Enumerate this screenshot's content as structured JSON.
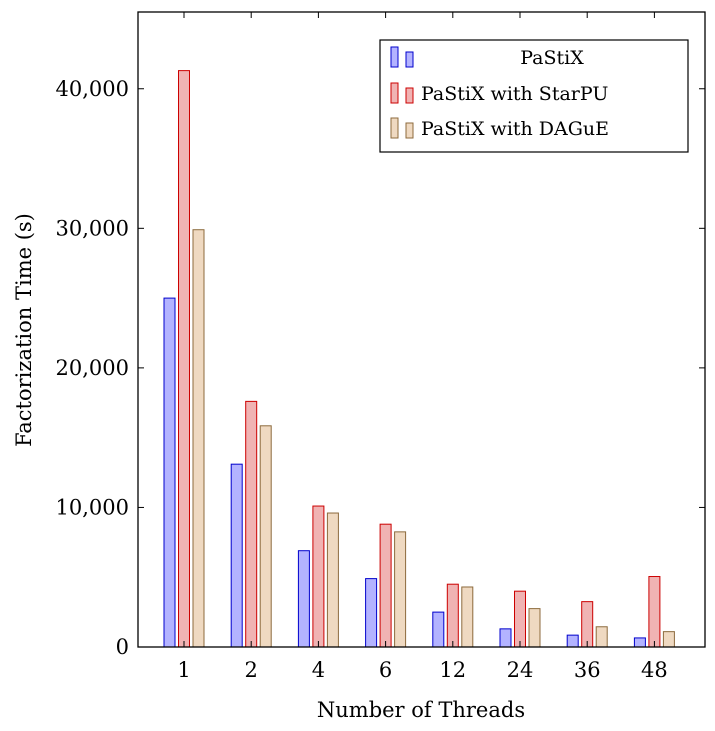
{
  "chart_data": {
    "type": "bar",
    "title": "",
    "xlabel": "Number of Threads",
    "ylabel": "Factorization Time (s)",
    "categories": [
      "1",
      "2",
      "4",
      "6",
      "12",
      "24",
      "36",
      "48"
    ],
    "ylim": [
      0,
      45500
    ],
    "yticks": [
      0,
      10000,
      20000,
      30000,
      40000
    ],
    "ytick_labels": [
      "0",
      "10,000",
      "20,000",
      "30,000",
      "40,000"
    ],
    "grid": false,
    "legend_position": "top-right",
    "series": [
      {
        "name": "PaStiX",
        "values": [
          25000,
          13100,
          6900,
          4900,
          2500,
          1300,
          850,
          650
        ],
        "fill": "#b3b3ff",
        "stroke": "#0000cc"
      },
      {
        "name": "PaStiX with StarPU",
        "values": [
          41300,
          17600,
          10100,
          8800,
          4500,
          4000,
          3250,
          5050
        ],
        "fill": "#f0b3b3",
        "stroke": "#cc0000"
      },
      {
        "name": "PaStiX with DAGuE",
        "values": [
          29900,
          15850,
          9600,
          8250,
          4300,
          2750,
          1450,
          1100
        ],
        "fill": "#efd9c1",
        "stroke": "#8c6a3c"
      }
    ]
  }
}
